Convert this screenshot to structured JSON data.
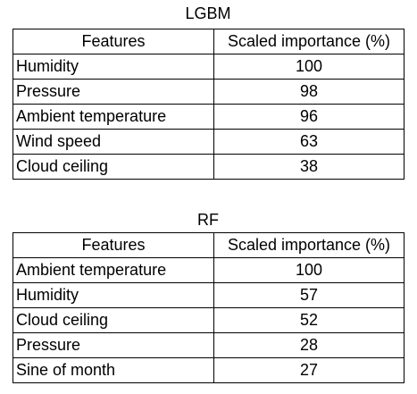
{
  "tables": [
    {
      "title": "LGBM",
      "headers": [
        "Features",
        "Scaled importance (%)"
      ],
      "rows": [
        {
          "feature": "Humidity",
          "value": "100"
        },
        {
          "feature": "Pressure",
          "value": "98"
        },
        {
          "feature": "Ambient temperature",
          "value": "96"
        },
        {
          "feature": "Wind speed",
          "value": "63"
        },
        {
          "feature": "Cloud ceiling",
          "value": "38"
        }
      ]
    },
    {
      "title": "RF",
      "headers": [
        "Features",
        "Scaled importance (%)"
      ],
      "rows": [
        {
          "feature": "Ambient temperature",
          "value": "100"
        },
        {
          "feature": "Humidity",
          "value": "57"
        },
        {
          "feature": "Cloud ceiling",
          "value": "52"
        },
        {
          "feature": "Pressure",
          "value": "28"
        },
        {
          "feature": "Sine of month",
          "value": "27"
        }
      ]
    }
  ]
}
